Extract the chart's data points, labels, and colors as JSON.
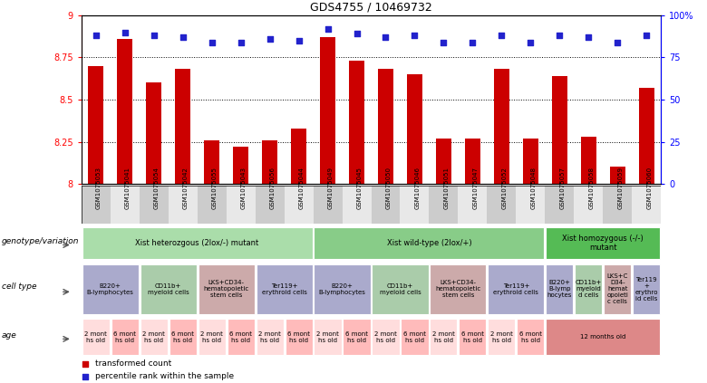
{
  "title": "GDS4755 / 10469732",
  "samples": [
    "GSM1075053",
    "GSM1075041",
    "GSM1075054",
    "GSM1075042",
    "GSM1075055",
    "GSM1075043",
    "GSM1075056",
    "GSM1075044",
    "GSM1075049",
    "GSM1075045",
    "GSM1075050",
    "GSM1075046",
    "GSM1075051",
    "GSM1075047",
    "GSM1075052",
    "GSM1075048",
    "GSM1075057",
    "GSM1075058",
    "GSM1075059",
    "GSM1075060"
  ],
  "bar_values": [
    8.7,
    8.86,
    8.6,
    8.68,
    8.26,
    8.22,
    8.26,
    8.33,
    8.87,
    8.73,
    8.68,
    8.65,
    8.27,
    8.27,
    8.68,
    8.27,
    8.64,
    8.28,
    8.1,
    8.57
  ],
  "percentile_values": [
    88,
    90,
    88,
    87,
    84,
    84,
    86,
    85,
    92,
    89,
    87,
    88,
    84,
    84,
    88,
    84,
    88,
    87,
    84,
    88
  ],
  "ylim_left": [
    8.0,
    9.0
  ],
  "yticks_left": [
    8.0,
    8.25,
    8.5,
    8.75,
    9.0
  ],
  "ytick_labels_left": [
    "8",
    "8.25",
    "8.5",
    "8.75",
    "9"
  ],
  "yticks_right": [
    0,
    25,
    50,
    75,
    100
  ],
  "ytick_labels_right": [
    "0",
    "25",
    "50",
    "75",
    "100%"
  ],
  "bar_color": "#cc0000",
  "dot_color": "#2222cc",
  "background_color": "#ffffff",
  "genotype_row": {
    "label": "genotype/variation",
    "groups": [
      {
        "text": "Xist heterozgous (2lox/-) mutant",
        "start": 0,
        "end": 8,
        "color": "#aaddaa"
      },
      {
        "text": "Xist wild-type (2lox/+)",
        "start": 8,
        "end": 16,
        "color": "#88cc88"
      },
      {
        "text": "Xist homozygous (-/-)\nmutant",
        "start": 16,
        "end": 20,
        "color": "#55bb55"
      }
    ]
  },
  "celltype_row": {
    "label": "cell type",
    "groups": [
      {
        "text": "B220+\nB-lymphocytes",
        "start": 0,
        "end": 2,
        "color": "#aaaacc"
      },
      {
        "text": "CD11b+\nmyeloid cells",
        "start": 2,
        "end": 4,
        "color": "#aaccaa"
      },
      {
        "text": "LKS+CD34-\nhematopoietic\nstem cells",
        "start": 4,
        "end": 6,
        "color": "#ccaaaa"
      },
      {
        "text": "Ter119+\nerythroid cells",
        "start": 6,
        "end": 8,
        "color": "#aaaacc"
      },
      {
        "text": "B220+\nB-lymphocytes",
        "start": 8,
        "end": 10,
        "color": "#aaaacc"
      },
      {
        "text": "CD11b+\nmyeloid cells",
        "start": 10,
        "end": 12,
        "color": "#aaccaa"
      },
      {
        "text": "LKS+CD34-\nhematopoietic\nstem cells",
        "start": 12,
        "end": 14,
        "color": "#ccaaaa"
      },
      {
        "text": "Ter119+\nerythroid cells",
        "start": 14,
        "end": 16,
        "color": "#aaaacc"
      },
      {
        "text": "B220+\nB-lymp\nhocytes",
        "start": 16,
        "end": 17,
        "color": "#aaaacc"
      },
      {
        "text": "CD11b+\nmyeloid\nd cells",
        "start": 17,
        "end": 18,
        "color": "#aaccaa"
      },
      {
        "text": "LKS+C\nD34-\nhemat\nopoieti\nc cells",
        "start": 18,
        "end": 19,
        "color": "#ccaaaa"
      },
      {
        "text": "Ter119\n+\nerythro\nid cells",
        "start": 19,
        "end": 20,
        "color": "#aaaacc"
      }
    ]
  },
  "age_row": {
    "label": "age",
    "groups": [
      {
        "text": "2 mont\nhs old",
        "start": 0,
        "end": 1,
        "color": "#ffdddd"
      },
      {
        "text": "6 mont\nhs old",
        "start": 1,
        "end": 2,
        "color": "#ffbbbb"
      },
      {
        "text": "2 mont\nhs old",
        "start": 2,
        "end": 3,
        "color": "#ffdddd"
      },
      {
        "text": "6 mont\nhs old",
        "start": 3,
        "end": 4,
        "color": "#ffbbbb"
      },
      {
        "text": "2 mont\nhs old",
        "start": 4,
        "end": 5,
        "color": "#ffdddd"
      },
      {
        "text": "6 mont\nhs old",
        "start": 5,
        "end": 6,
        "color": "#ffbbbb"
      },
      {
        "text": "2 mont\nhs old",
        "start": 6,
        "end": 7,
        "color": "#ffdddd"
      },
      {
        "text": "6 mont\nhs old",
        "start": 7,
        "end": 8,
        "color": "#ffbbbb"
      },
      {
        "text": "2 mont\nhs old",
        "start": 8,
        "end": 9,
        "color": "#ffdddd"
      },
      {
        "text": "6 mont\nhs old",
        "start": 9,
        "end": 10,
        "color": "#ffbbbb"
      },
      {
        "text": "2 mont\nhs old",
        "start": 10,
        "end": 11,
        "color": "#ffdddd"
      },
      {
        "text": "6 mont\nhs old",
        "start": 11,
        "end": 12,
        "color": "#ffbbbb"
      },
      {
        "text": "2 mont\nhs old",
        "start": 12,
        "end": 13,
        "color": "#ffdddd"
      },
      {
        "text": "6 mont\nhs old",
        "start": 13,
        "end": 14,
        "color": "#ffbbbb"
      },
      {
        "text": "2 mont\nhs old",
        "start": 14,
        "end": 15,
        "color": "#ffdddd"
      },
      {
        "text": "6 mont\nhs old",
        "start": 15,
        "end": 16,
        "color": "#ffbbbb"
      },
      {
        "text": "12 months old",
        "start": 16,
        "end": 20,
        "color": "#dd8888"
      }
    ]
  },
  "legend": [
    {
      "color": "#cc0000",
      "marker": "s",
      "label": "transformed count"
    },
    {
      "color": "#2222cc",
      "marker": "s",
      "label": "percentile rank within the sample"
    }
  ]
}
